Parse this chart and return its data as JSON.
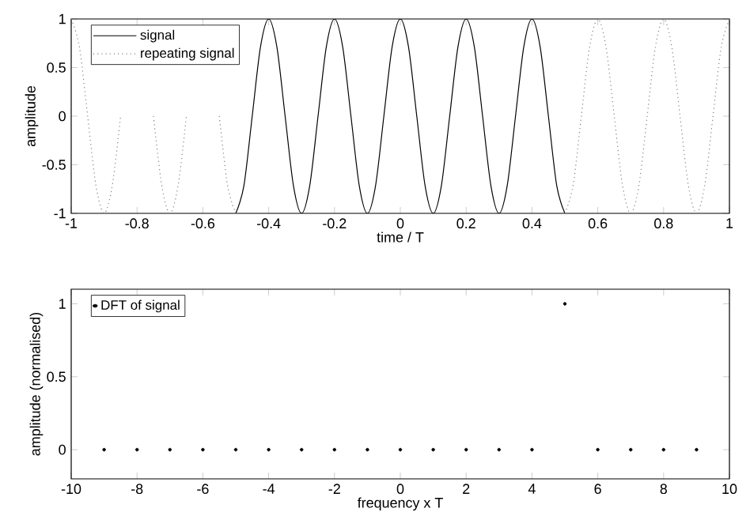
{
  "chart_data": [
    {
      "type": "line",
      "xlabel": "time / T",
      "ylabel": "amplitude",
      "xlim": [
        -1,
        1
      ],
      "ylim": [
        -1,
        1
      ],
      "xticks": [
        -1,
        -0.8,
        -0.6,
        -0.4,
        -0.2,
        0,
        0.2,
        0.4,
        0.6,
        0.8,
        1
      ],
      "yticks": [
        -1,
        -0.5,
        0,
        0.5,
        1
      ],
      "legend": "top left",
      "grid": false,
      "series": [
        {
          "name": "signal",
          "color": "#000000",
          "line_style": "solid",
          "x": [
            -0.5,
            -0.475,
            -0.45,
            -0.425,
            -0.4,
            -0.375,
            -0.35,
            -0.325,
            -0.3,
            -0.275,
            -0.25,
            -0.225,
            -0.2,
            -0.175,
            -0.15,
            -0.125,
            -0.1,
            -0.075,
            -0.05,
            -0.025,
            0,
            0.025,
            0.05,
            0.075,
            0.1,
            0.125,
            0.15,
            0.175,
            0.2,
            0.225,
            0.25,
            0.275,
            0.3,
            0.325,
            0.35,
            0.375,
            0.4,
            0.425,
            0.45,
            0.475,
            0.5
          ],
          "values": [
            -1,
            -0.71,
            0,
            0.71,
            1,
            0.71,
            0,
            -0.71,
            -1,
            -0.71,
            0,
            0.71,
            1,
            0.71,
            0,
            -0.71,
            -1,
            -0.71,
            0,
            0.71,
            1,
            0.71,
            0,
            -0.71,
            -1,
            -0.71,
            0,
            0.71,
            1,
            0.71,
            0,
            -0.71,
            -1,
            -0.71,
            0,
            0.71,
            1,
            0.71,
            0,
            -0.71,
            -1
          ]
        },
        {
          "name": "repeating signal",
          "color": "#808080",
          "line_style": "dotted",
          "x": [
            -1,
            -0.975,
            -0.95,
            -0.925,
            -0.9,
            -0.875,
            -0.85,
            -0.825,
            -0.8,
            -0.775,
            -0.75,
            -0.725,
            -0.7,
            -0.675,
            -0.65,
            -0.625,
            -0.6,
            -0.575,
            -0.55,
            -0.525,
            -0.5,
            0,
            0.5,
            0.525,
            0.55,
            0.575,
            0.6,
            0.625,
            0.65,
            0.675,
            0.7,
            0.725,
            0.75,
            0.775,
            0.8,
            0.825,
            0.85,
            0.875,
            0.9,
            0.925,
            0.95,
            0.975,
            1
          ],
          "values": [
            1,
            0.71,
            0,
            -0.71,
            -1,
            -0.71,
            0,
            null,
            null,
            null,
            0,
            -0.71,
            -1,
            -0.71,
            0,
            null,
            null,
            null,
            0,
            -0.71,
            -1,
            null,
            -1,
            -0.71,
            0,
            0.71,
            1,
            0.71,
            0,
            -0.71,
            -1,
            -0.71,
            0,
            0.71,
            1,
            0.71,
            0,
            -0.71,
            -1,
            -0.71,
            0,
            0.71,
            1
          ]
        }
      ]
    },
    {
      "type": "scatter",
      "xlabel": "frequency x T",
      "ylabel": "amplitude (normalised)",
      "xlim": [
        -10,
        10
      ],
      "ylim": [
        -0.2,
        1.1
      ],
      "xticks": [
        -10,
        -8,
        -6,
        -4,
        -2,
        0,
        2,
        4,
        6,
        8,
        10
      ],
      "yticks": [
        0,
        0.5,
        1
      ],
      "legend": "top left",
      "marker": "circle",
      "grid": false,
      "series": [
        {
          "name": "DFT of signal",
          "color": "#000000",
          "x": [
            -9,
            -8,
            -7,
            -6,
            -5,
            -4,
            -3,
            -2,
            -1,
            0,
            1,
            2,
            3,
            4,
            5,
            6,
            7,
            8,
            9
          ],
          "values": [
            0,
            0,
            0,
            0,
            0,
            0,
            0,
            0,
            0,
            0,
            0,
            0,
            0,
            0,
            1,
            0,
            0,
            0,
            0
          ]
        }
      ]
    }
  ]
}
